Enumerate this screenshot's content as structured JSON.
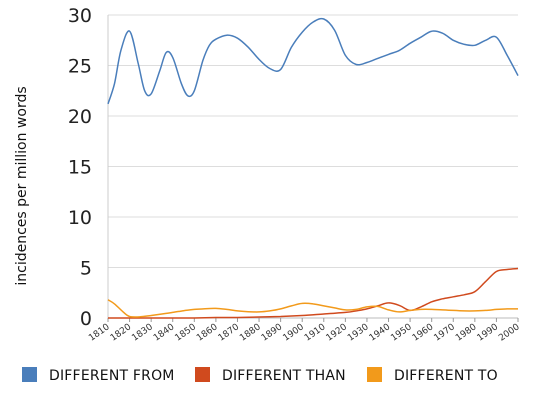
{
  "chart_data": {
    "type": "line",
    "title": "",
    "xlabel": "",
    "ylabel": "incidences per million words",
    "xlim": [
      1810,
      2000
    ],
    "ylim": [
      0,
      30
    ],
    "yticks": [
      0,
      5,
      10,
      15,
      20,
      25,
      30
    ],
    "xticks": [
      1810,
      1820,
      1830,
      1840,
      1850,
      1860,
      1870,
      1880,
      1890,
      1900,
      1910,
      1920,
      1930,
      1940,
      1950,
      1960,
      1970,
      1980,
      1990,
      2000
    ],
    "grid": true,
    "legend_position": "bottom",
    "series": [
      {
        "name": "DIFFERENT FROM",
        "color": "#4a7ebb",
        "x": [
          1810,
          1813,
          1816,
          1820,
          1824,
          1827,
          1830,
          1834,
          1837,
          1840,
          1844,
          1847,
          1850,
          1854,
          1857,
          1860,
          1865,
          1870,
          1875,
          1880,
          1885,
          1890,
          1895,
          1900,
          1905,
          1910,
          1915,
          1920,
          1925,
          1930,
          1935,
          1940,
          1945,
          1950,
          1955,
          1960,
          1965,
          1970,
          1975,
          1980,
          1985,
          1990,
          1995,
          2000
        ],
        "y": [
          21.2,
          23.2,
          26.5,
          28.4,
          25.2,
          22.5,
          22.2,
          24.5,
          26.3,
          25.8,
          23.2,
          22.0,
          22.5,
          25.5,
          27.0,
          27.6,
          28.0,
          27.7,
          26.8,
          25.6,
          24.7,
          24.6,
          26.8,
          28.3,
          29.3,
          29.6,
          28.5,
          26.0,
          25.1,
          25.3,
          25.7,
          26.1,
          26.5,
          27.2,
          27.8,
          28.4,
          28.2,
          27.5,
          27.1,
          27.0,
          27.5,
          27.8,
          26.0,
          24.0
        ]
      },
      {
        "name": "DIFFERENT THAN",
        "color": "#d04a1e",
        "x": [
          1810,
          1820,
          1830,
          1840,
          1850,
          1860,
          1870,
          1880,
          1890,
          1900,
          1910,
          1920,
          1925,
          1930,
          1935,
          1940,
          1945,
          1950,
          1955,
          1960,
          1965,
          1970,
          1975,
          1980,
          1985,
          1990,
          1995,
          2000
        ],
        "y": [
          0.0,
          0.0,
          0.0,
          0.0,
          0.0,
          0.05,
          0.05,
          0.1,
          0.15,
          0.25,
          0.4,
          0.55,
          0.7,
          0.9,
          1.2,
          1.5,
          1.25,
          0.75,
          1.1,
          1.6,
          1.9,
          2.1,
          2.3,
          2.6,
          3.6,
          4.6,
          4.8,
          4.9
        ]
      },
      {
        "name": "DIFFERENT TO",
        "color": "#f29a1b",
        "x": [
          1810,
          1813,
          1817,
          1820,
          1825,
          1830,
          1835,
          1840,
          1845,
          1850,
          1855,
          1860,
          1865,
          1870,
          1875,
          1880,
          1885,
          1890,
          1895,
          1900,
          1905,
          1910,
          1915,
          1920,
          1925,
          1930,
          1935,
          1940,
          1945,
          1950,
          1955,
          1960,
          1965,
          1970,
          1975,
          1980,
          1985,
          1990,
          1995,
          2000
        ],
        "y": [
          1.8,
          1.4,
          0.6,
          0.15,
          0.12,
          0.25,
          0.4,
          0.55,
          0.72,
          0.85,
          0.92,
          0.95,
          0.85,
          0.7,
          0.62,
          0.6,
          0.7,
          0.9,
          1.2,
          1.45,
          1.4,
          1.2,
          1.0,
          0.8,
          0.85,
          1.1,
          1.15,
          0.8,
          0.6,
          0.75,
          0.85,
          0.85,
          0.8,
          0.75,
          0.7,
          0.7,
          0.75,
          0.85,
          0.9,
          0.9
        ]
      }
    ]
  }
}
